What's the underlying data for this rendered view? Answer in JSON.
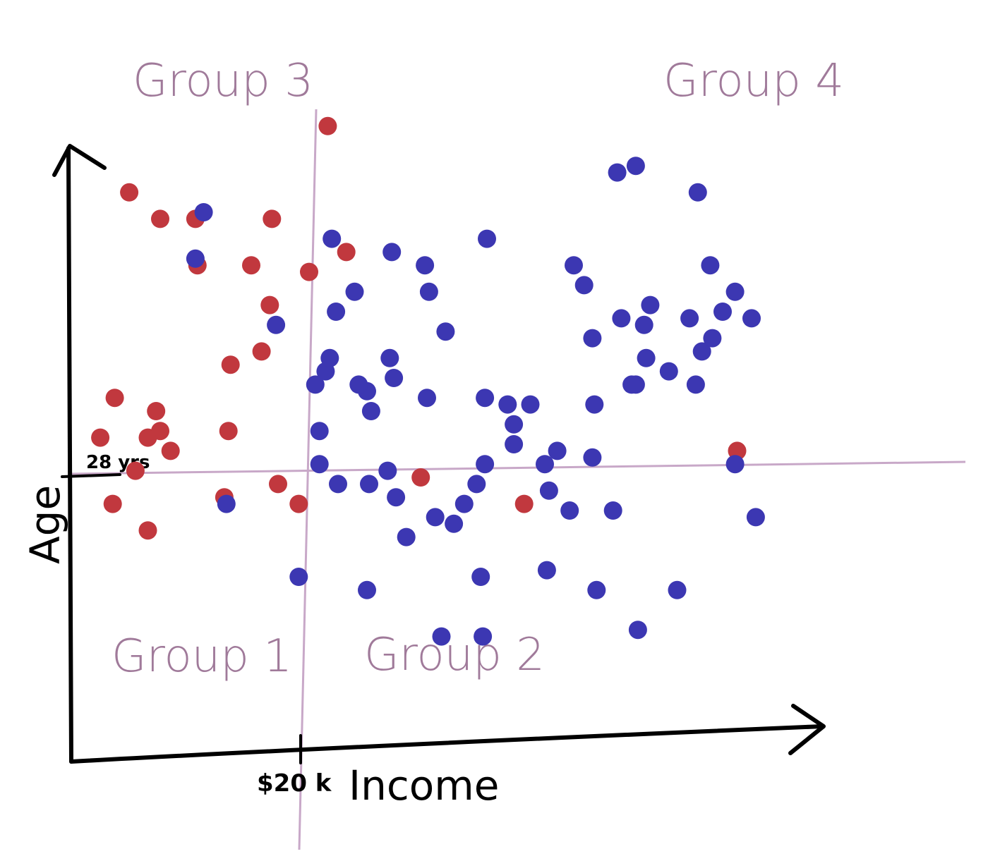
{
  "chart_data": {
    "type": "scatter",
    "title": "",
    "xlabel": "Income",
    "ylabel": "Age",
    "thresholds": {
      "x": {
        "label": "$20 k"
      },
      "y": {
        "label": "28 yrs"
      }
    },
    "group_labels": [
      "Group 3",
      "Group 4",
      "Group 1",
      "Group 2"
    ],
    "colors": {
      "red": "#c1383e",
      "blue": "#3c37b2",
      "divider": "#c8a8c8",
      "axis": "#000000",
      "label": "#a07a9a"
    },
    "series": [
      {
        "color": "red",
        "points": [
          [
            0.13,
            0.88
          ],
          [
            0.28,
            0.84
          ],
          [
            0.45,
            0.84
          ],
          [
            0.82,
            0.84
          ],
          [
            0.72,
            0.77
          ],
          [
            0.46,
            0.77
          ],
          [
            0.81,
            0.71
          ],
          [
            0.77,
            0.64
          ],
          [
            1.0,
            0.76
          ],
          [
            1.18,
            0.79
          ],
          [
            1.09,
            0.98
          ],
          [
            2.04,
            0.41
          ],
          [
            3.07,
            0.49
          ],
          [
            0.62,
            0.62
          ],
          [
            0.28,
            0.52
          ],
          [
            0.33,
            0.49
          ],
          [
            0.26,
            0.55
          ],
          [
            0.06,
            0.57
          ],
          [
            0.16,
            0.46
          ],
          [
            0.22,
            0.51
          ],
          [
            -0.01,
            0.51
          ],
          [
            0.05,
            0.41
          ],
          [
            0.22,
            0.37
          ],
          [
            0.59,
            0.42
          ],
          [
            0.61,
            0.52
          ],
          [
            0.85,
            0.44
          ],
          [
            0.95,
            0.41
          ],
          [
            1.54,
            0.45
          ]
        ]
      },
      {
        "color": "blue",
        "points": [
          [
            0.49,
            0.85
          ],
          [
            0.45,
            0.78
          ],
          [
            0.84,
            0.68
          ],
          [
            1.22,
            0.73
          ],
          [
            1.66,
            0.67
          ],
          [
            1.86,
            0.81
          ],
          [
            2.58,
            0.92
          ],
          [
            2.49,
            0.91
          ],
          [
            2.88,
            0.88
          ],
          [
            1.13,
            0.7
          ],
          [
            1.11,
            0.81
          ],
          [
            1.4,
            0.79
          ],
          [
            1.56,
            0.77
          ],
          [
            1.39,
            0.63
          ],
          [
            1.08,
            0.61
          ],
          [
            1.28,
            0.58
          ],
          [
            1.41,
            0.6
          ],
          [
            1.58,
            0.73
          ],
          [
            1.96,
            0.56
          ],
          [
            1.57,
            0.57
          ],
          [
            1.3,
            0.55
          ],
          [
            1.24,
            0.59
          ],
          [
            1.03,
            0.59
          ],
          [
            1.1,
            0.63
          ],
          [
            1.85,
            0.57
          ],
          [
            1.99,
            0.53
          ],
          [
            2.14,
            0.47
          ],
          [
            2.2,
            0.49
          ],
          [
            1.85,
            0.47
          ],
          [
            1.38,
            0.46
          ],
          [
            1.05,
            0.52
          ],
          [
            1.47,
            0.36
          ],
          [
            1.81,
            0.44
          ],
          [
            2.65,
            0.71
          ],
          [
            2.37,
            0.66
          ],
          [
            2.87,
            0.59
          ],
          [
            2.58,
            0.59
          ],
          [
            2.38,
            0.56
          ],
          [
            2.37,
            0.48
          ],
          [
            2.16,
            0.43
          ],
          [
            2.26,
            0.4
          ],
          [
            2.47,
            0.4
          ],
          [
            1.61,
            0.39
          ],
          [
            1.7,
            0.38
          ],
          [
            1.75,
            0.41
          ],
          [
            1.42,
            0.42
          ],
          [
            1.29,
            0.44
          ],
          [
            1.14,
            0.44
          ],
          [
            1.05,
            0.47
          ],
          [
            2.51,
            0.69
          ],
          [
            2.9,
            0.64
          ],
          [
            3.06,
            0.73
          ],
          [
            2.84,
            0.69
          ],
          [
            2.62,
            0.68
          ],
          [
            2.63,
            0.63
          ],
          [
            2.74,
            0.61
          ],
          [
            3.14,
            0.69
          ],
          [
            3.0,
            0.7
          ],
          [
            2.33,
            0.74
          ],
          [
            2.28,
            0.77
          ],
          [
            2.94,
            0.77
          ],
          [
            2.56,
            0.59
          ],
          [
            2.07,
            0.56
          ],
          [
            1.99,
            0.5
          ],
          [
            2.95,
            0.66
          ],
          [
            3.06,
            0.47
          ],
          [
            3.16,
            0.39
          ],
          [
            2.78,
            0.28
          ],
          [
            2.59,
            0.22
          ],
          [
            2.39,
            0.28
          ],
          [
            2.15,
            0.31
          ],
          [
            1.83,
            0.3
          ],
          [
            1.28,
            0.28
          ],
          [
            0.95,
            0.3
          ],
          [
            0.6,
            0.41
          ],
          [
            1.64,
            0.21
          ],
          [
            1.84,
            0.21
          ]
        ]
      }
    ]
  }
}
